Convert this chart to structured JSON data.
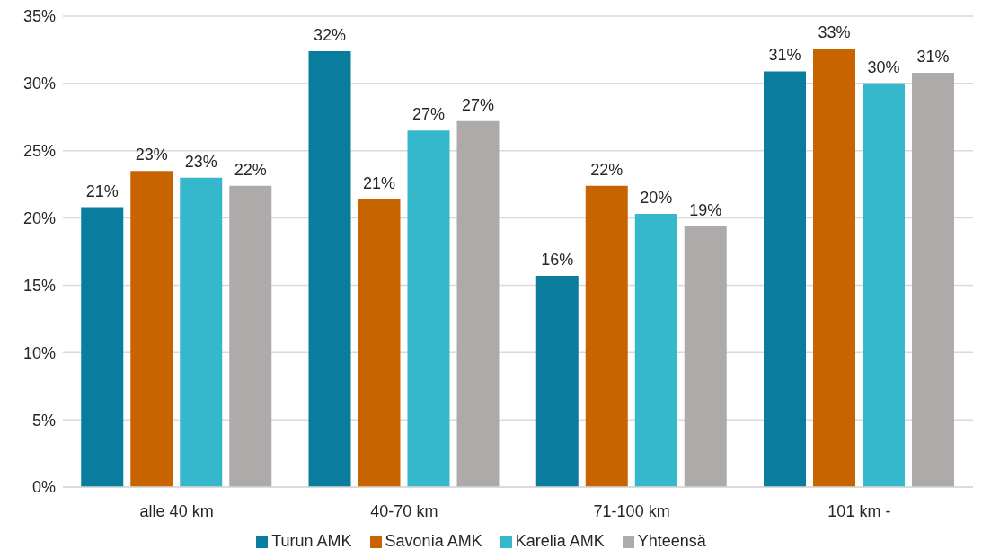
{
  "chart_data": {
    "type": "bar",
    "categories": [
      "alle 40 km",
      "40-70 km",
      "71-100 km",
      "101 km -"
    ],
    "series": [
      {
        "name": "Turun AMK",
        "color": "#0a7d9e",
        "values": [
          20.8,
          32.4,
          15.7,
          30.9
        ],
        "value_labels": [
          "21%",
          "32%",
          "16%",
          "31%"
        ]
      },
      {
        "name": "Savonia AMK",
        "color": "#c86400",
        "values": [
          23.5,
          21.4,
          22.4,
          32.6
        ],
        "value_labels": [
          "23%",
          "21%",
          "22%",
          "33%"
        ]
      },
      {
        "name": "Karelia AMK",
        "color": "#35b8cc",
        "values": [
          23.0,
          26.5,
          20.3,
          30.0
        ],
        "value_labels": [
          "23%",
          "27%",
          "20%",
          "30%"
        ]
      },
      {
        "name": "Yhteensä",
        "color": "#aeaaaa",
        "values": [
          22.4,
          27.2,
          19.4,
          30.8
        ],
        "value_labels": [
          "22%",
          "27%",
          "19%",
          "31%"
        ]
      }
    ],
    "ylim": [
      0,
      35
    ],
    "yticks": [
      {
        "value": 0,
        "label": "0%"
      },
      {
        "value": 5,
        "label": "5%"
      },
      {
        "value": 10,
        "label": "10%"
      },
      {
        "value": 15,
        "label": "15%"
      },
      {
        "value": 20,
        "label": "20%"
      },
      {
        "value": 25,
        "label": "25%"
      },
      {
        "value": 30,
        "label": "30%"
      },
      {
        "value": 35,
        "label": "35%"
      }
    ],
    "grid": "y",
    "legend": "bottom"
  }
}
